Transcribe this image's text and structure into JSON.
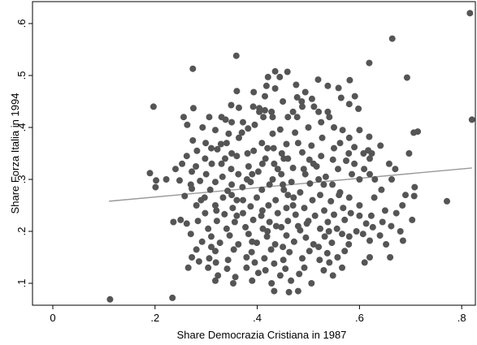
{
  "chart_data": {
    "type": "scatter",
    "title": "",
    "xlabel": "Share Democrazia Cristiana in 1987",
    "ylabel": "Share Forza Italia in 1994",
    "xlim": [
      0,
      0.82
    ],
    "ylim": [
      0.05,
      0.63
    ],
    "xticks": [
      0,
      0.2,
      0.4,
      0.6,
      0.8
    ],
    "xtick_labels": [
      "0",
      ".2",
      ".4",
      ".6",
      ".8"
    ],
    "yticks": [
      0.1,
      0.2,
      0.3,
      0.4,
      0.5,
      0.6
    ],
    "ytick_labels": [
      ".1",
      ".2",
      ".3",
      ".4",
      ".5",
      ".6"
    ],
    "grid": false,
    "legend": "none",
    "marker_color": "#555555",
    "fit_color": "#999999",
    "fit_line": {
      "x": [
        0.11,
        0.82
      ],
      "y": [
        0.258,
        0.322
      ]
    },
    "points": [
      [
        0.112,
        0.069
      ],
      [
        0.234,
        0.072
      ],
      [
        0.816,
        0.62
      ],
      [
        0.82,
        0.415
      ],
      [
        0.664,
        0.571
      ],
      [
        0.359,
        0.538
      ],
      [
        0.274,
        0.513
      ],
      [
        0.435,
        0.508
      ],
      [
        0.459,
        0.507
      ],
      [
        0.444,
        0.497
      ],
      [
        0.421,
        0.497
      ],
      [
        0.693,
        0.496
      ],
      [
        0.519,
        0.492
      ],
      [
        0.476,
        0.482
      ],
      [
        0.581,
        0.491
      ],
      [
        0.559,
        0.476
      ],
      [
        0.538,
        0.48
      ],
      [
        0.619,
        0.524
      ],
      [
        0.591,
        0.46
      ],
      [
        0.564,
        0.457
      ],
      [
        0.197,
        0.44
      ],
      [
        0.275,
        0.437
      ],
      [
        0.349,
        0.443
      ],
      [
        0.364,
        0.438
      ],
      [
        0.392,
        0.44
      ],
      [
        0.404,
        0.437
      ],
      [
        0.404,
        0.43
      ],
      [
        0.415,
        0.433
      ],
      [
        0.428,
        0.43
      ],
      [
        0.487,
        0.45
      ],
      [
        0.488,
        0.44
      ],
      [
        0.511,
        0.44
      ],
      [
        0.538,
        0.43
      ],
      [
        0.58,
        0.445
      ],
      [
        0.598,
        0.436
      ],
      [
        0.256,
        0.42
      ],
      [
        0.306,
        0.42
      ],
      [
        0.33,
        0.42
      ],
      [
        0.35,
        0.41
      ],
      [
        0.372,
        0.41
      ],
      [
        0.395,
        0.405
      ],
      [
        0.412,
        0.42
      ],
      [
        0.478,
        0.42
      ],
      [
        0.5,
        0.4
      ],
      [
        0.541,
        0.42
      ],
      [
        0.263,
        0.405
      ],
      [
        0.293,
        0.4
      ],
      [
        0.318,
        0.395
      ],
      [
        0.382,
        0.398
      ],
      [
        0.445,
        0.396
      ],
      [
        0.567,
        0.395
      ],
      [
        0.6,
        0.395
      ],
      [
        0.619,
        0.382
      ],
      [
        0.344,
        0.388
      ],
      [
        0.364,
        0.38
      ],
      [
        0.43,
        0.388
      ],
      [
        0.474,
        0.39
      ],
      [
        0.527,
        0.38
      ],
      [
        0.562,
        0.37
      ],
      [
        0.641,
        0.365
      ],
      [
        0.706,
        0.39
      ],
      [
        0.714,
        0.392
      ],
      [
        0.274,
        0.375
      ],
      [
        0.299,
        0.37
      ],
      [
        0.329,
        0.368
      ],
      [
        0.409,
        0.37
      ],
      [
        0.457,
        0.368
      ],
      [
        0.506,
        0.365
      ],
      [
        0.55,
        0.36
      ],
      [
        0.59,
        0.362
      ],
      [
        0.617,
        0.356
      ],
      [
        0.282,
        0.355
      ],
      [
        0.322,
        0.358
      ],
      [
        0.35,
        0.35
      ],
      [
        0.393,
        0.355
      ],
      [
        0.432,
        0.36
      ],
      [
        0.488,
        0.352
      ],
      [
        0.525,
        0.345
      ],
      [
        0.579,
        0.35
      ],
      [
        0.608,
        0.35
      ],
      [
        0.624,
        0.35
      ],
      [
        0.697,
        0.35
      ],
      [
        0.262,
        0.345
      ],
      [
        0.298,
        0.34
      ],
      [
        0.337,
        0.34
      ],
      [
        0.36,
        0.345
      ],
      [
        0.416,
        0.34
      ],
      [
        0.452,
        0.34
      ],
      [
        0.502,
        0.338
      ],
      [
        0.548,
        0.338
      ],
      [
        0.574,
        0.336
      ],
      [
        0.658,
        0.33
      ],
      [
        0.253,
        0.33
      ],
      [
        0.28,
        0.325
      ],
      [
        0.311,
        0.33
      ],
      [
        0.349,
        0.32
      ],
      [
        0.383,
        0.325
      ],
      [
        0.433,
        0.33
      ],
      [
        0.47,
        0.322
      ],
      [
        0.516,
        0.325
      ],
      [
        0.558,
        0.32
      ],
      [
        0.609,
        0.32
      ],
      [
        0.67,
        0.32
      ],
      [
        0.24,
        0.32
      ],
      [
        0.272,
        0.315
      ],
      [
        0.3,
        0.31
      ],
      [
        0.332,
        0.305
      ],
      [
        0.363,
        0.31
      ],
      [
        0.402,
        0.315
      ],
      [
        0.447,
        0.31
      ],
      [
        0.494,
        0.31
      ],
      [
        0.534,
        0.305
      ],
      [
        0.585,
        0.31
      ],
      [
        0.62,
        0.31
      ],
      [
        0.19,
        0.312
      ],
      [
        0.202,
        0.298
      ],
      [
        0.222,
        0.3
      ],
      [
        0.248,
        0.298
      ],
      [
        0.288,
        0.297
      ],
      [
        0.318,
        0.295
      ],
      [
        0.35,
        0.29
      ],
      [
        0.387,
        0.295
      ],
      [
        0.424,
        0.29
      ],
      [
        0.467,
        0.295
      ],
      [
        0.503,
        0.292
      ],
      [
        0.547,
        0.29
      ],
      [
        0.6,
        0.3
      ],
      [
        0.663,
        0.3
      ],
      [
        0.201,
        0.285
      ],
      [
        0.272,
        0.282
      ],
      [
        0.308,
        0.28
      ],
      [
        0.342,
        0.278
      ],
      [
        0.371,
        0.285
      ],
      [
        0.409,
        0.28
      ],
      [
        0.452,
        0.28
      ],
      [
        0.484,
        0.275
      ],
      [
        0.523,
        0.27
      ],
      [
        0.562,
        0.275
      ],
      [
        0.643,
        0.28
      ],
      [
        0.708,
        0.285
      ],
      [
        0.258,
        0.268
      ],
      [
        0.297,
        0.265
      ],
      [
        0.333,
        0.265
      ],
      [
        0.36,
        0.26
      ],
      [
        0.399,
        0.265
      ],
      [
        0.436,
        0.26
      ],
      [
        0.471,
        0.265
      ],
      [
        0.508,
        0.26
      ],
      [
        0.544,
        0.258
      ],
      [
        0.58,
        0.265
      ],
      [
        0.629,
        0.265
      ],
      [
        0.707,
        0.268
      ],
      [
        0.771,
        0.258
      ],
      [
        0.281,
        0.25
      ],
      [
        0.318,
        0.25
      ],
      [
        0.352,
        0.245
      ],
      [
        0.387,
        0.248
      ],
      [
        0.422,
        0.25
      ],
      [
        0.457,
        0.245
      ],
      [
        0.492,
        0.245
      ],
      [
        0.531,
        0.24
      ],
      [
        0.568,
        0.245
      ],
      [
        0.6,
        0.25
      ],
      [
        0.684,
        0.25
      ],
      [
        0.298,
        0.235
      ],
      [
        0.336,
        0.233
      ],
      [
        0.372,
        0.235
      ],
      [
        0.408,
        0.23
      ],
      [
        0.44,
        0.235
      ],
      [
        0.475,
        0.232
      ],
      [
        0.513,
        0.23
      ],
      [
        0.55,
        0.232
      ],
      [
        0.583,
        0.235
      ],
      [
        0.623,
        0.23
      ],
      [
        0.672,
        0.235
      ],
      [
        0.25,
        0.222
      ],
      [
        0.284,
        0.22
      ],
      [
        0.321,
        0.22
      ],
      [
        0.356,
        0.218
      ],
      [
        0.392,
        0.222
      ],
      [
        0.424,
        0.218
      ],
      [
        0.46,
        0.22
      ],
      [
        0.497,
        0.215
      ],
      [
        0.538,
        0.218
      ],
      [
        0.571,
        0.222
      ],
      [
        0.613,
        0.215
      ],
      [
        0.645,
        0.218
      ],
      [
        0.703,
        0.222
      ],
      [
        0.236,
        0.218
      ],
      [
        0.262,
        0.215
      ],
      [
        0.304,
        0.205
      ],
      [
        0.34,
        0.205
      ],
      [
        0.377,
        0.208
      ],
      [
        0.411,
        0.205
      ],
      [
        0.447,
        0.208
      ],
      [
        0.484,
        0.202
      ],
      [
        0.523,
        0.205
      ],
      [
        0.556,
        0.205
      ],
      [
        0.594,
        0.2
      ],
      [
        0.626,
        0.208
      ],
      [
        0.662,
        0.21
      ],
      [
        0.27,
        0.195
      ],
      [
        0.31,
        0.19
      ],
      [
        0.346,
        0.192
      ],
      [
        0.383,
        0.195
      ],
      [
        0.419,
        0.19
      ],
      [
        0.457,
        0.192
      ],
      [
        0.495,
        0.188
      ],
      [
        0.532,
        0.19
      ],
      [
        0.566,
        0.195
      ],
      [
        0.607,
        0.195
      ],
      [
        0.64,
        0.192
      ],
      [
        0.68,
        0.2
      ],
      [
        0.292,
        0.18
      ],
      [
        0.327,
        0.178
      ],
      [
        0.363,
        0.175
      ],
      [
        0.399,
        0.178
      ],
      [
        0.435,
        0.175
      ],
      [
        0.472,
        0.18
      ],
      [
        0.51,
        0.175
      ],
      [
        0.546,
        0.178
      ],
      [
        0.579,
        0.175
      ],
      [
        0.62,
        0.182
      ],
      [
        0.652,
        0.175
      ],
      [
        0.685,
        0.182
      ],
      [
        0.281,
        0.165
      ],
      [
        0.318,
        0.162
      ],
      [
        0.354,
        0.165
      ],
      [
        0.389,
        0.16
      ],
      [
        0.427,
        0.165
      ],
      [
        0.463,
        0.16
      ],
      [
        0.502,
        0.162
      ],
      [
        0.537,
        0.158
      ],
      [
        0.571,
        0.162
      ],
      [
        0.272,
        0.15
      ],
      [
        0.306,
        0.148
      ],
      [
        0.343,
        0.145
      ],
      [
        0.379,
        0.15
      ],
      [
        0.414,
        0.148
      ],
      [
        0.451,
        0.145
      ],
      [
        0.488,
        0.148
      ],
      [
        0.522,
        0.145
      ],
      [
        0.557,
        0.15
      ],
      [
        0.62,
        0.15
      ],
      [
        0.286,
        0.142
      ],
      [
        0.319,
        0.14
      ],
      [
        0.395,
        0.14
      ],
      [
        0.433,
        0.138
      ],
      [
        0.541,
        0.14
      ],
      [
        0.265,
        0.13
      ],
      [
        0.304,
        0.13
      ],
      [
        0.341,
        0.128
      ],
      [
        0.379,
        0.13
      ],
      [
        0.416,
        0.125
      ],
      [
        0.455,
        0.128
      ],
      [
        0.492,
        0.13
      ],
      [
        0.53,
        0.125
      ],
      [
        0.566,
        0.13
      ],
      [
        0.323,
        0.115
      ],
      [
        0.357,
        0.112
      ],
      [
        0.402,
        0.12
      ],
      [
        0.445,
        0.115
      ],
      [
        0.482,
        0.118
      ],
      [
        0.548,
        0.115
      ],
      [
        0.318,
        0.105
      ],
      [
        0.353,
        0.1
      ],
      [
        0.39,
        0.105
      ],
      [
        0.428,
        0.1
      ],
      [
        0.466,
        0.105
      ],
      [
        0.506,
        0.1
      ],
      [
        0.433,
        0.085
      ],
      [
        0.462,
        0.083
      ],
      [
        0.48,
        0.085
      ],
      [
        0.418,
        0.48
      ],
      [
        0.435,
        0.475
      ],
      [
        0.393,
        0.468
      ],
      [
        0.415,
        0.46
      ],
      [
        0.494,
        0.468
      ],
      [
        0.507,
        0.455
      ],
      [
        0.478,
        0.458
      ],
      [
        0.45,
        0.45
      ],
      [
        0.46,
        0.42
      ],
      [
        0.525,
        0.41
      ],
      [
        0.36,
        0.47
      ],
      [
        0.338,
        0.415
      ],
      [
        0.381,
        0.35
      ],
      [
        0.448,
        0.35
      ],
      [
        0.491,
        0.32
      ],
      [
        0.54,
        0.2
      ],
      [
        0.437,
        0.21
      ],
      [
        0.372,
        0.26
      ],
      [
        0.46,
        0.27
      ],
      [
        0.52,
        0.3
      ],
      [
        0.43,
        0.3
      ],
      [
        0.39,
        0.31
      ],
      [
        0.35,
        0.27
      ],
      [
        0.41,
        0.24
      ],
      [
        0.47,
        0.25
      ],
      [
        0.5,
        0.22
      ],
      [
        0.44,
        0.32
      ],
      [
        0.48,
        0.37
      ],
      [
        0.37,
        0.39
      ],
      [
        0.42,
        0.36
      ],
      [
        0.46,
        0.34
      ],
      [
        0.51,
        0.33
      ],
      [
        0.33,
        0.33
      ],
      [
        0.38,
        0.3
      ],
      [
        0.41,
        0.33
      ],
      [
        0.45,
        0.29
      ],
      [
        0.53,
        0.29
      ],
      [
        0.36,
        0.23
      ],
      [
        0.42,
        0.2
      ],
      [
        0.48,
        0.21
      ],
      [
        0.39,
        0.18
      ],
      [
        0.45,
        0.17
      ],
      [
        0.52,
        0.17
      ],
      [
        0.58,
        0.19
      ],
      [
        0.6,
        0.23
      ],
      [
        0.56,
        0.27
      ],
      [
        0.59,
        0.33
      ],
      [
        0.63,
        0.3
      ],
      [
        0.32,
        0.24
      ],
      [
        0.29,
        0.26
      ],
      [
        0.27,
        0.29
      ],
      [
        0.31,
        0.36
      ],
      [
        0.34,
        0.37
      ],
      [
        0.43,
        0.42
      ],
      [
        0.47,
        0.43
      ],
      [
        0.52,
        0.43
      ],
      [
        0.55,
        0.4
      ],
      [
        0.58,
        0.38
      ],
      [
        0.62,
        0.34
      ],
      [
        0.65,
        0.24
      ],
      [
        0.69,
        0.27
      ],
      [
        0.66,
        0.15
      ],
      [
        0.61,
        0.14
      ],
      [
        0.31,
        0.17
      ]
    ]
  }
}
